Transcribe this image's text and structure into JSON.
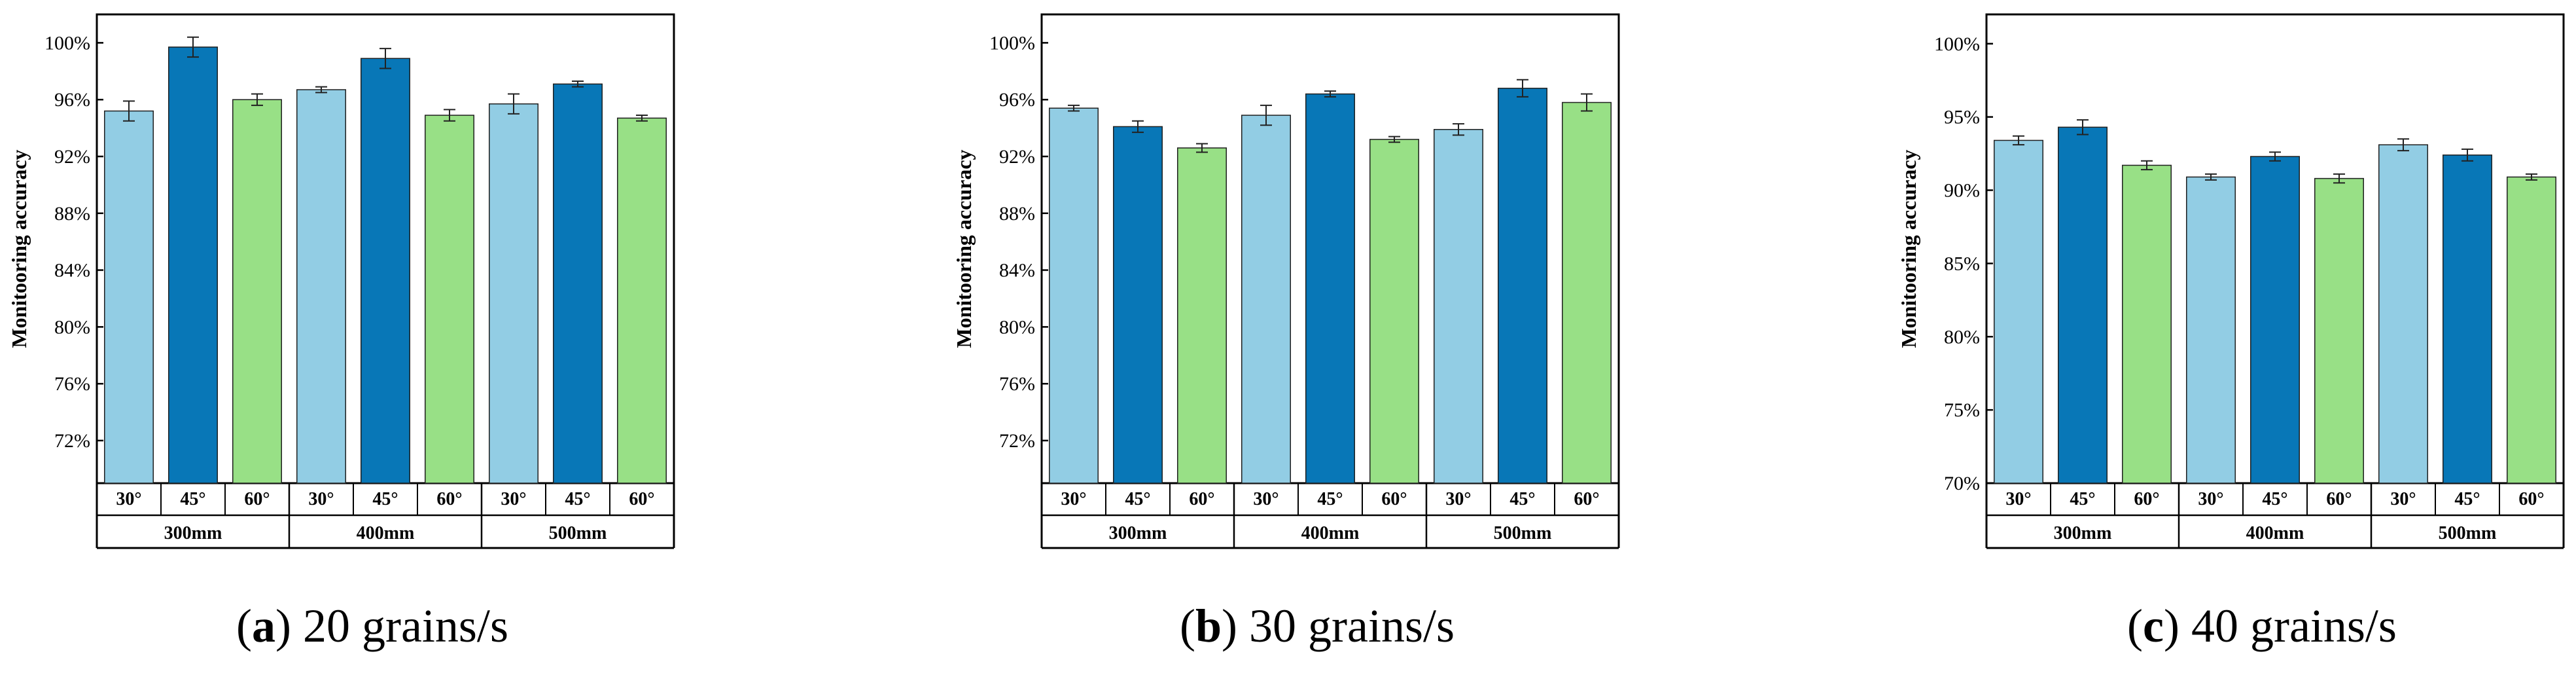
{
  "colors": {
    "30°": "#92cde4",
    "45°": "#0877b7",
    "60°": "#98e086",
    "axis": "#000000"
  },
  "chart_data": [
    {
      "type": "bar",
      "caption_letter": "a",
      "caption_text": " 20 grains/s",
      "ylabel": "Monitooring accuracy",
      "ylim": [
        0.69,
        1.02
      ],
      "yticks": [
        0.72,
        0.76,
        0.8,
        0.84,
        0.88,
        0.92,
        0.96,
        1.0
      ],
      "ytick_labels": [
        "72%",
        "76%",
        "80%",
        "84%",
        "88%",
        "92%",
        "96%",
        "100%"
      ],
      "groups": [
        "300mm",
        "400mm",
        "500mm"
      ],
      "subcategories": [
        "30°",
        "45°",
        "60°"
      ],
      "values": [
        [
          0.952,
          0.997,
          0.96
        ],
        [
          0.967,
          0.989,
          0.949
        ],
        [
          0.957,
          0.971,
          0.947
        ]
      ],
      "errors": [
        [
          0.007,
          0.007,
          0.004
        ],
        [
          0.002,
          0.007,
          0.004
        ],
        [
          0.007,
          0.002,
          0.002
        ]
      ]
    },
    {
      "type": "bar",
      "caption_letter": "b",
      "caption_text": " 30 grains/s",
      "ylabel": "Monitooring accuracy",
      "ylim": [
        0.69,
        1.02
      ],
      "yticks": [
        0.72,
        0.76,
        0.8,
        0.84,
        0.88,
        0.92,
        0.96,
        1.0
      ],
      "ytick_labels": [
        "72%",
        "76%",
        "80%",
        "84%",
        "88%",
        "92%",
        "96%",
        "100%"
      ],
      "groups": [
        "300mm",
        "400mm",
        "500mm"
      ],
      "subcategories": [
        "30°",
        "45°",
        "60°"
      ],
      "values": [
        [
          0.954,
          0.941,
          0.926
        ],
        [
          0.949,
          0.964,
          0.932
        ],
        [
          0.939,
          0.968,
          0.958
        ]
      ],
      "errors": [
        [
          0.002,
          0.004,
          0.003
        ],
        [
          0.007,
          0.002,
          0.002
        ],
        [
          0.004,
          0.006,
          0.006
        ]
      ]
    },
    {
      "type": "bar",
      "caption_letter": "c",
      "caption_text": " 40 grains/s",
      "ylabel": "Monitooring accuracy",
      "ylim": [
        0.7,
        1.02
      ],
      "yticks": [
        0.7,
        0.75,
        0.8,
        0.85,
        0.9,
        0.95,
        1.0
      ],
      "ytick_labels": [
        "70%",
        "75%",
        "80%",
        "85%",
        "90%",
        "95%",
        "100%"
      ],
      "groups": [
        "300mm",
        "400mm",
        "500mm"
      ],
      "subcategories": [
        "30°",
        "45°",
        "60°"
      ],
      "values": [
        [
          0.934,
          0.943,
          0.917
        ],
        [
          0.909,
          0.923,
          0.908
        ],
        [
          0.931,
          0.924,
          0.909
        ]
      ],
      "errors": [
        [
          0.003,
          0.005,
          0.003
        ],
        [
          0.002,
          0.003,
          0.003
        ],
        [
          0.004,
          0.004,
          0.002
        ]
      ]
    }
  ]
}
